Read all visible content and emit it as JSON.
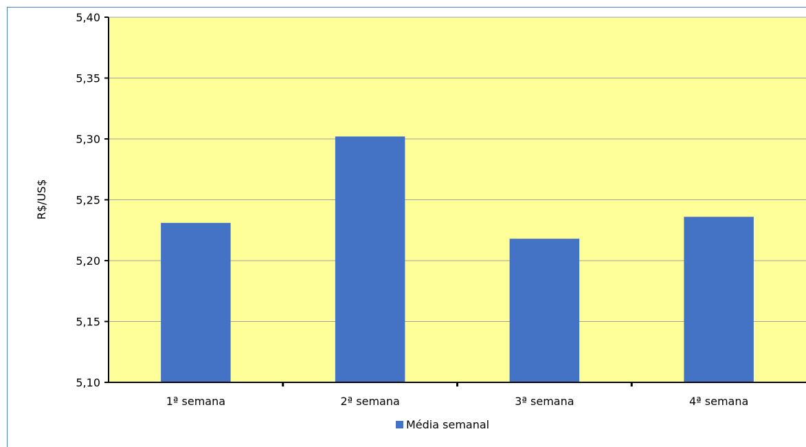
{
  "chart_data": {
    "type": "bar",
    "categories": [
      "1ª semana",
      "2ª semana",
      "3ª semana",
      "4ª semana"
    ],
    "series": [
      {
        "name": "Média semanal",
        "values": [
          5.231,
          5.302,
          5.218,
          5.236
        ]
      }
    ],
    "xlabel": "",
    "ylabel": "R$/US$",
    "ylim": [
      5.1,
      5.4
    ],
    "yticks": [
      "5,10",
      "5,15",
      "5,20",
      "5,25",
      "5,30",
      "5,35",
      "5,40"
    ],
    "grid": true,
    "legend_position": "bottom",
    "colors": {
      "bar": "#4472c4",
      "plot_background": "#ffff99",
      "grid": "#a0a0a0"
    }
  }
}
